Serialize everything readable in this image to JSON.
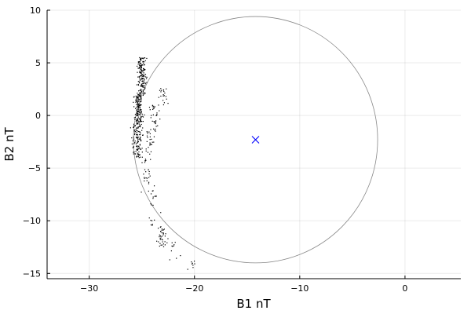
{
  "chart_data": {
    "type": "scatter",
    "title": "",
    "xlabel": "B1 nT",
    "ylabel": "B2 nT",
    "xlim": [
      -34,
      5.3
    ],
    "ylim": [
      -15.5,
      10
    ],
    "grid": true,
    "legend": "none",
    "x_ticks": [
      -30,
      -20,
      -10,
      0
    ],
    "x_tick_labels": [
      "−30",
      "−20",
      "−10",
      "0"
    ],
    "y_ticks": [
      -15,
      -10,
      -5,
      0,
      5,
      10
    ],
    "y_tick_labels": [
      "−15",
      "−10",
      "−5",
      "0",
      "5",
      "10"
    ],
    "circle": {
      "center": [
        -14.2,
        -2.3
      ],
      "radius_x": 11.6,
      "radius_y": 11.7,
      "color": "#888888"
    },
    "center_marker": {
      "x": -14.2,
      "y": -2.3,
      "symbol": "x",
      "color": "#0000ff"
    },
    "points_color": "#000000",
    "point_clusters": [
      {
        "x_center": -25.0,
        "x_spread": 0.35,
        "y_min": 2.0,
        "y_max": 5.5,
        "count": 160
      },
      {
        "x_center": -25.3,
        "x_spread": 0.35,
        "y_min": -1.0,
        "y_max": 2.0,
        "count": 150
      },
      {
        "x_center": -25.4,
        "x_spread": 0.45,
        "y_min": -4.0,
        "y_max": -1.0,
        "count": 110
      },
      {
        "x_center": -23.8,
        "x_spread": 0.4,
        "y_min": -1.5,
        "y_max": 1.0,
        "count": 35
      },
      {
        "x_center": -23.0,
        "x_spread": 0.4,
        "y_min": 1.0,
        "y_max": 2.6,
        "count": 20
      },
      {
        "x_center": -24.3,
        "x_spread": 0.35,
        "y_min": -4.0,
        "y_max": -1.5,
        "count": 25
      },
      {
        "x_center": -24.6,
        "x_spread": 0.55,
        "y_min": -7.5,
        "y_max": -4.0,
        "count": 30
      },
      {
        "x_center": -24.0,
        "x_spread": 0.55,
        "y_min": -10.5,
        "y_max": -7.5,
        "count": 16
      },
      {
        "x_center": -23.1,
        "x_spread": 0.4,
        "y_min": -12.5,
        "y_max": -10.5,
        "count": 38
      },
      {
        "x_center": -21.8,
        "x_spread": 0.6,
        "y_min": -13.8,
        "y_max": -12.0,
        "count": 10
      },
      {
        "x_center": -20.2,
        "x_spread": 0.4,
        "y_min": -15.0,
        "y_max": -13.8,
        "count": 8
      }
    ]
  }
}
